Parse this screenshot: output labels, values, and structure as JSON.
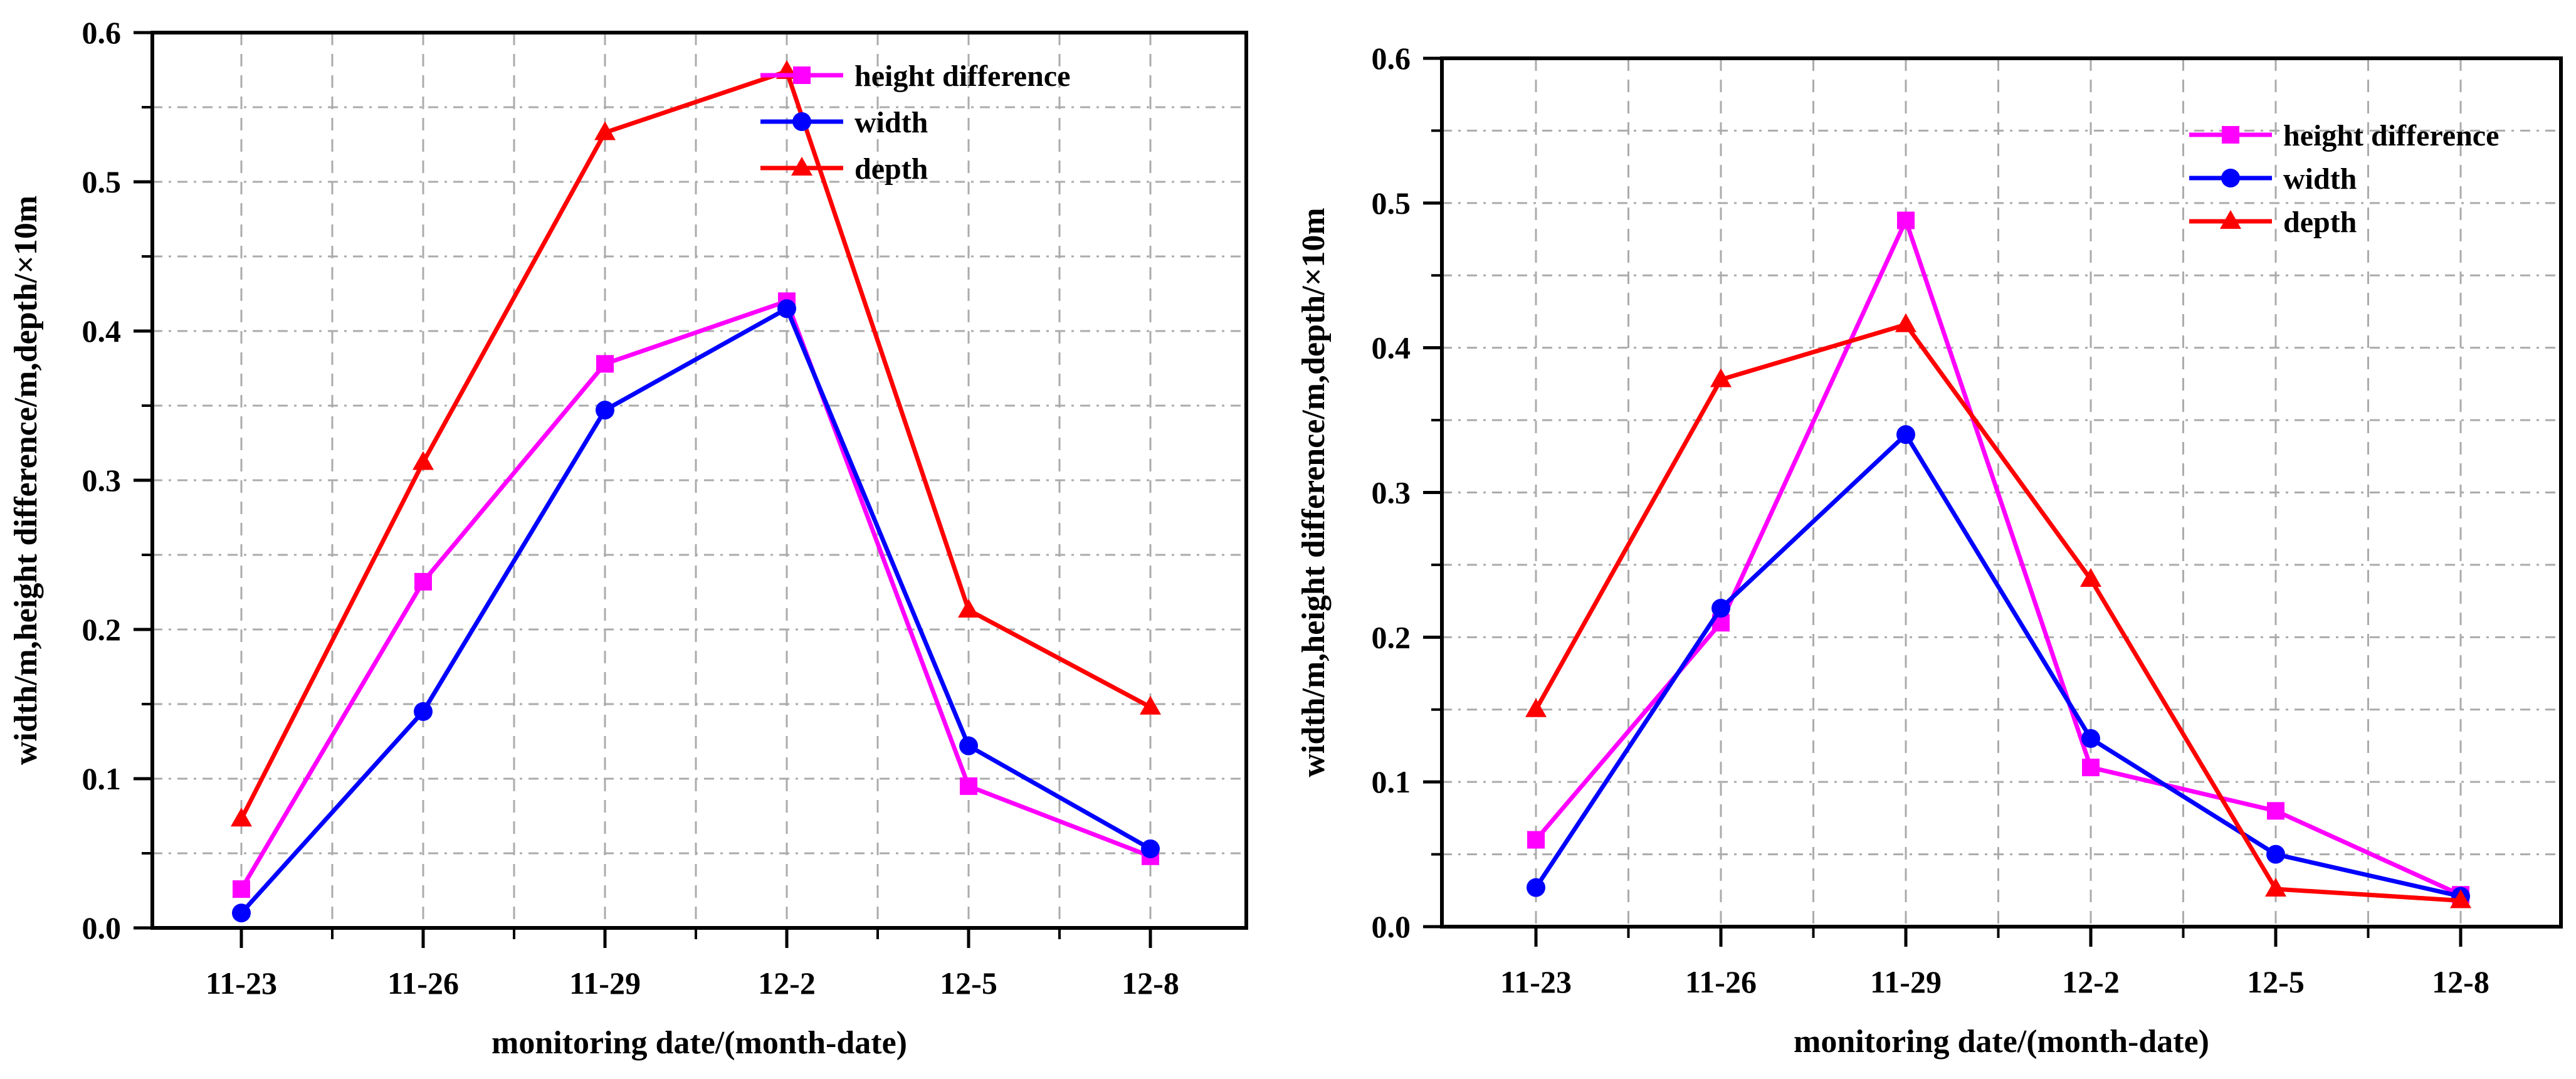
{
  "page": {
    "background": "#ffffff",
    "description_colors": {
      "height_difference": "#ff00ff",
      "width": "#0000ff",
      "depth": "#ff0000",
      "grid": "#ababab",
      "axis": "#000000"
    }
  },
  "chart_data": [
    {
      "type": "line",
      "panel": "left",
      "title": "",
      "xlabel": "monitoring date/(month-date)",
      "ylabel": "width/m,height difference/m,depth/×10m",
      "categories": [
        "11-23",
        "11-26",
        "11-29",
        "12-2",
        "12-5",
        "12-8"
      ],
      "ylim": [
        0,
        0.6
      ],
      "ytick_step": 0.1,
      "yminor_step": 0.05,
      "ytick_labels": [
        "0.0",
        "0.1",
        "0.2",
        "0.3",
        "0.4",
        "0.5",
        "0.6"
      ],
      "grid": true,
      "legend_position": "inside-top-right",
      "series": [
        {
          "name": "height difference",
          "color": "#ff00ff",
          "marker": "square",
          "values": [
            0.026,
            0.232,
            0.378,
            0.42,
            0.095,
            0.048
          ]
        },
        {
          "name": "width",
          "color": "#0000ff",
          "marker": "circle",
          "values": [
            0.01,
            0.145,
            0.347,
            0.415,
            0.122,
            0.053
          ]
        },
        {
          "name": "depth",
          "color": "#ff0000",
          "marker": "triangle",
          "values": [
            0.073,
            0.312,
            0.533,
            0.574,
            0.213,
            0.148
          ]
        }
      ]
    },
    {
      "type": "line",
      "panel": "right",
      "title": "",
      "xlabel": "monitoring date/(month-date)",
      "ylabel": "width/m,height difference/m,depth/×10m",
      "categories": [
        "11-23",
        "11-26",
        "11-29",
        "12-2",
        "12-5",
        "12-8"
      ],
      "ylim": [
        0,
        0.6
      ],
      "ytick_step": 0.1,
      "yminor_step": 0.05,
      "ytick_labels": [
        "0.0",
        "0.1",
        "0.2",
        "0.3",
        "0.4",
        "0.5",
        "0.6"
      ],
      "grid": true,
      "legend_position": "inside-top-right",
      "series": [
        {
          "name": "height difference",
          "color": "#ff00ff",
          "marker": "square",
          "values": [
            0.06,
            0.21,
            0.488,
            0.11,
            0.08,
            0.022
          ]
        },
        {
          "name": "width",
          "color": "#0000ff",
          "marker": "circle",
          "values": [
            0.027,
            0.22,
            0.34,
            0.13,
            0.05,
            0.021
          ]
        },
        {
          "name": "depth",
          "color": "#ff0000",
          "marker": "triangle",
          "values": [
            0.15,
            0.378,
            0.416,
            0.24,
            0.026,
            0.018
          ]
        }
      ]
    }
  ]
}
